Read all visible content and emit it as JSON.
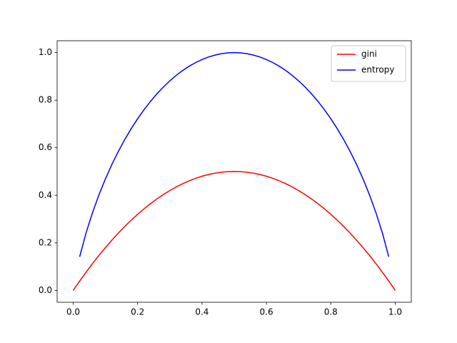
{
  "chart_data": {
    "type": "line",
    "x": [
      0,
      0.02,
      0.04,
      0.06,
      0.08,
      0.1,
      0.12,
      0.14,
      0.16,
      0.18,
      0.2,
      0.22,
      0.24,
      0.26,
      0.28,
      0.3,
      0.32,
      0.34,
      0.36,
      0.38,
      0.4,
      0.42,
      0.44,
      0.46,
      0.48,
      0.5,
      0.52,
      0.54,
      0.56,
      0.58,
      0.6,
      0.62,
      0.64,
      0.66,
      0.68,
      0.7,
      0.72,
      0.74,
      0.76,
      0.78,
      0.8,
      0.82,
      0.84,
      0.86,
      0.88,
      0.9,
      0.92,
      0.94,
      0.96,
      0.98,
      1
    ],
    "series": [
      {
        "name": "gini",
        "color": "#ff0000",
        "values": [
          0,
          0.0392,
          0.0768,
          0.1128,
          0.1472,
          0.18,
          0.2112,
          0.2408,
          0.2688,
          0.2952,
          0.32,
          0.3432,
          0.3648,
          0.3848,
          0.4032,
          0.42,
          0.4352,
          0.4488,
          0.4608,
          0.4712,
          0.48,
          0.4872,
          0.4928,
          0.4968,
          0.4992,
          0.5,
          0.4992,
          0.4968,
          0.4928,
          0.4872,
          0.48,
          0.4712,
          0.4608,
          0.4488,
          0.4352,
          0.42,
          0.4032,
          0.3848,
          0.3648,
          0.3432,
          0.32,
          0.2952,
          0.2688,
          0.2408,
          0.2112,
          0.18,
          0.1472,
          0.1128,
          0.0768,
          0.0392,
          0
        ]
      },
      {
        "name": "entropy",
        "color": "#0000ff",
        "values": [
          null,
          0.1414,
          0.2423,
          0.3274,
          0.4022,
          0.469,
          0.5294,
          0.5842,
          0.6343,
          0.6801,
          0.7219,
          0.7602,
          0.795,
          0.8267,
          0.8555,
          0.8813,
          0.9044,
          0.9248,
          0.9427,
          0.958,
          0.971,
          0.9815,
          0.9896,
          0.9954,
          0.9988,
          1.0,
          0.9988,
          0.9954,
          0.9896,
          0.9815,
          0.971,
          0.958,
          0.9427,
          0.9248,
          0.9044,
          0.8813,
          0.8555,
          0.8267,
          0.795,
          0.7602,
          0.7219,
          0.6801,
          0.6343,
          0.5842,
          0.5294,
          0.469,
          0.4022,
          0.3274,
          0.2423,
          0.1414,
          null
        ]
      }
    ],
    "xlim": [
      -0.05,
      1.05
    ],
    "ylim": [
      -0.05,
      1.05
    ],
    "xticks": [
      {
        "value": 0,
        "label": "0.0"
      },
      {
        "value": 0.2,
        "label": "0.2"
      },
      {
        "value": 0.4,
        "label": "0.4"
      },
      {
        "value": 0.6,
        "label": "0.6"
      },
      {
        "value": 0.8,
        "label": "0.8"
      },
      {
        "value": 1,
        "label": "1.0"
      }
    ],
    "yticks": [
      {
        "value": 0,
        "label": "0.0"
      },
      {
        "value": 0.2,
        "label": "0.2"
      },
      {
        "value": 0.4,
        "label": "0.4"
      },
      {
        "value": 0.6,
        "label": "0.6"
      },
      {
        "value": 0.8,
        "label": "0.8"
      },
      {
        "value": 1,
        "label": "1.0"
      }
    ],
    "grid": false,
    "legend": "upper-right"
  }
}
